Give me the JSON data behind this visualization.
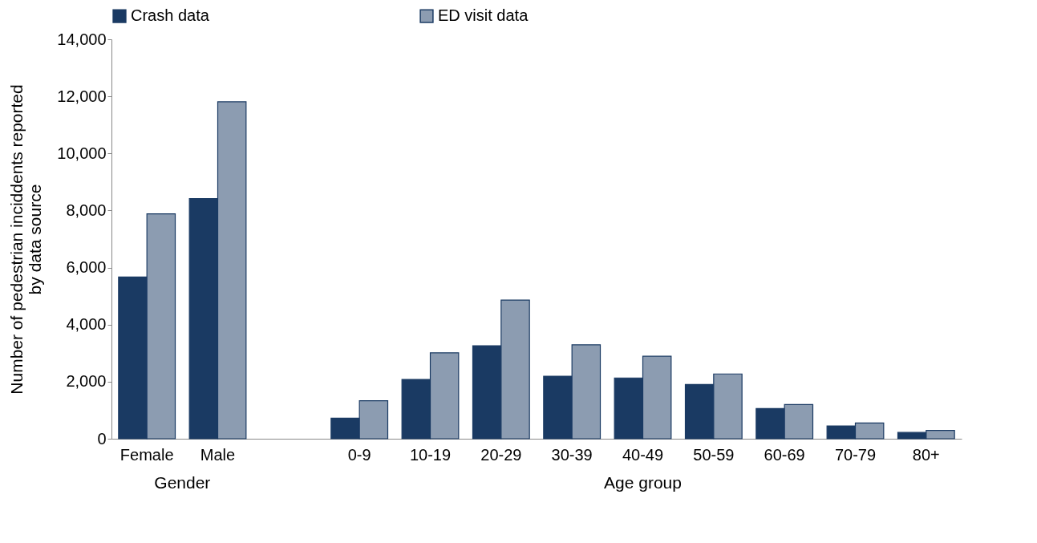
{
  "chart_data": {
    "type": "bar",
    "categories": [
      "Female",
      "Male",
      null,
      "0-9",
      "10-19",
      "20-29",
      "30-39",
      "40-49",
      "50-59",
      "60-69",
      "70-79",
      "80+"
    ],
    "series": [
      {
        "name": "Crash data",
        "color": "#1a3a63",
        "values": [
          5670,
          8420,
          null,
          720,
          2080,
          3260,
          2190,
          2130,
          1900,
          1060,
          450,
          220
        ]
      },
      {
        "name": "ED visit data",
        "color": "#8c9cb1",
        "values": [
          7880,
          11810,
          null,
          1330,
          3010,
          4860,
          3290,
          2890,
          2270,
          1200,
          550,
          290
        ]
      }
    ],
    "ylabel": "Number of pedestrian inciddents reported by data source",
    "ylim": [
      0,
      14000
    ],
    "yticks": [
      0,
      {
        "value": 2000,
        "label": "2,000"
      },
      {
        "value": 4000,
        "label": "4,000"
      },
      {
        "value": 6000,
        "label": "6,000"
      },
      {
        "value": 8000,
        "label": "8,000"
      },
      {
        "value": 10000,
        "label": "10,000"
      },
      {
        "value": 12000,
        "label": "12,000"
      },
      {
        "value": 14000,
        "label": "14,000"
      }
    ],
    "annotations": [
      "Gender",
      "Age group"
    ],
    "legend": "top",
    "grid": false
  }
}
